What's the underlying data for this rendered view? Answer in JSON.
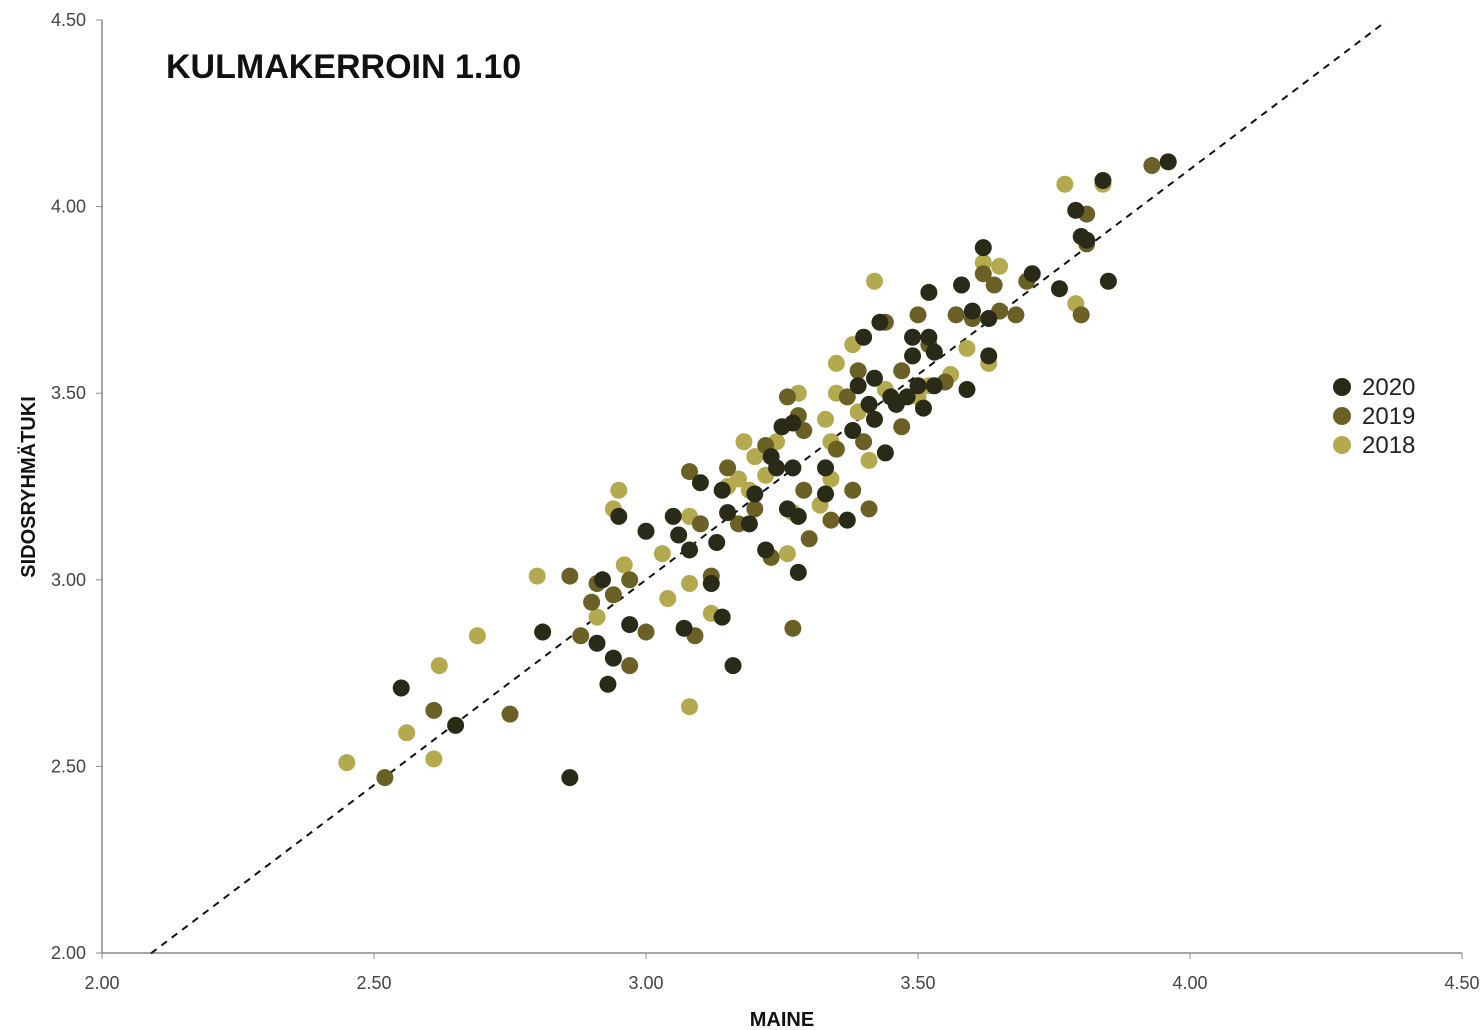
{
  "chart_data": {
    "type": "scatter",
    "title": "KULMAKERROIN 1.10",
    "xlabel": "MAINE",
    "ylabel": "SIDOSRYHMÄTUKI",
    "xlim": [
      2.0,
      4.5
    ],
    "ylim": [
      2.0,
      4.5
    ],
    "xticks": [
      "2.00",
      "2.50",
      "3.00",
      "3.50",
      "4.00",
      "4.50"
    ],
    "yticks": [
      "2.00",
      "2.50",
      "3.00",
      "3.50",
      "4.00",
      "4.50"
    ],
    "grid": false,
    "legend_position": "right",
    "trendline": {
      "style": "dashed",
      "color": "#111111",
      "slope": 1.1,
      "intercept": -0.3,
      "x": [
        2.09,
        4.36
      ]
    },
    "series": [
      {
        "name": "2018",
        "color": "#b3a94e",
        "points": [
          [
            2.45,
            2.51
          ],
          [
            2.56,
            2.59
          ],
          [
            2.61,
            2.52
          ],
          [
            2.62,
            2.77
          ],
          [
            2.69,
            2.85
          ],
          [
            2.8,
            3.01
          ],
          [
            2.91,
            2.9
          ],
          [
            2.94,
            3.19
          ],
          [
            2.95,
            3.24
          ],
          [
            2.96,
            3.04
          ],
          [
            3.03,
            3.07
          ],
          [
            3.04,
            2.95
          ],
          [
            3.08,
            2.66
          ],
          [
            3.08,
            2.99
          ],
          [
            3.08,
            3.17
          ],
          [
            3.12,
            2.91
          ],
          [
            3.15,
            3.25
          ],
          [
            3.17,
            3.27
          ],
          [
            3.18,
            3.37
          ],
          [
            3.19,
            3.24
          ],
          [
            3.2,
            3.33
          ],
          [
            3.22,
            3.28
          ],
          [
            3.24,
            3.37
          ],
          [
            3.26,
            3.07
          ],
          [
            3.27,
            3.18
          ],
          [
            3.28,
            3.5
          ],
          [
            3.32,
            3.2
          ],
          [
            3.33,
            3.43
          ],
          [
            3.34,
            3.37
          ],
          [
            3.34,
            3.27
          ],
          [
            3.35,
            3.5
          ],
          [
            3.35,
            3.58
          ],
          [
            3.38,
            3.63
          ],
          [
            3.39,
            3.45
          ],
          [
            3.41,
            3.32
          ],
          [
            3.42,
            3.8
          ],
          [
            3.44,
            3.51
          ],
          [
            3.5,
            3.49
          ],
          [
            3.52,
            3.52
          ],
          [
            3.56,
            3.55
          ],
          [
            3.59,
            3.62
          ],
          [
            3.62,
            3.85
          ],
          [
            3.63,
            3.58
          ],
          [
            3.65,
            3.84
          ],
          [
            3.77,
            4.06
          ],
          [
            3.79,
            3.74
          ],
          [
            3.84,
            4.06
          ]
        ]
      },
      {
        "name": "2019",
        "color": "#6b6127",
        "points": [
          [
            2.52,
            2.47
          ],
          [
            2.61,
            2.65
          ],
          [
            2.75,
            2.64
          ],
          [
            2.86,
            3.01
          ],
          [
            2.88,
            2.85
          ],
          [
            2.9,
            2.94
          ],
          [
            2.91,
            2.99
          ],
          [
            2.94,
            2.96
          ],
          [
            2.97,
            2.77
          ],
          [
            2.97,
            3.0
          ],
          [
            3.0,
            2.86
          ],
          [
            3.08,
            3.29
          ],
          [
            3.09,
            2.85
          ],
          [
            3.1,
            3.15
          ],
          [
            3.12,
            3.01
          ],
          [
            3.15,
            3.3
          ],
          [
            3.17,
            3.15
          ],
          [
            3.2,
            3.19
          ],
          [
            3.22,
            3.36
          ],
          [
            3.23,
            3.06
          ],
          [
            3.26,
            3.49
          ],
          [
            3.27,
            2.87
          ],
          [
            3.28,
            3.44
          ],
          [
            3.29,
            3.24
          ],
          [
            3.29,
            3.4
          ],
          [
            3.3,
            3.11
          ],
          [
            3.34,
            3.16
          ],
          [
            3.35,
            3.35
          ],
          [
            3.37,
            3.49
          ],
          [
            3.38,
            3.24
          ],
          [
            3.39,
            3.56
          ],
          [
            3.4,
            3.37
          ],
          [
            3.41,
            3.19
          ],
          [
            3.44,
            3.69
          ],
          [
            3.47,
            3.41
          ],
          [
            3.47,
            3.56
          ],
          [
            3.5,
            3.71
          ],
          [
            3.52,
            3.63
          ],
          [
            3.55,
            3.53
          ],
          [
            3.57,
            3.71
          ],
          [
            3.6,
            3.7
          ],
          [
            3.62,
            3.82
          ],
          [
            3.64,
            3.79
          ],
          [
            3.65,
            3.72
          ],
          [
            3.68,
            3.71
          ],
          [
            3.7,
            3.8
          ],
          [
            3.8,
            3.71
          ],
          [
            3.81,
            3.9
          ],
          [
            3.81,
            3.98
          ],
          [
            3.93,
            4.11
          ]
        ]
      },
      {
        "name": "2020",
        "color": "#2a2a18",
        "points": [
          [
            2.55,
            2.71
          ],
          [
            2.65,
            2.61
          ],
          [
            2.81,
            2.86
          ],
          [
            2.86,
            2.47
          ],
          [
            2.91,
            2.83
          ],
          [
            2.92,
            3.0
          ],
          [
            2.93,
            2.72
          ],
          [
            2.94,
            2.79
          ],
          [
            2.95,
            3.17
          ],
          [
            2.97,
            2.88
          ],
          [
            3.0,
            3.13
          ],
          [
            3.05,
            3.17
          ],
          [
            3.06,
            3.12
          ],
          [
            3.07,
            2.87
          ],
          [
            3.08,
            3.08
          ],
          [
            3.1,
            3.26
          ],
          [
            3.12,
            2.99
          ],
          [
            3.13,
            3.1
          ],
          [
            3.14,
            3.24
          ],
          [
            3.14,
            2.9
          ],
          [
            3.15,
            3.18
          ],
          [
            3.16,
            2.77
          ],
          [
            3.19,
            3.15
          ],
          [
            3.2,
            3.23
          ],
          [
            3.22,
            3.08
          ],
          [
            3.23,
            3.33
          ],
          [
            3.24,
            3.3
          ],
          [
            3.25,
            3.41
          ],
          [
            3.26,
            3.19
          ],
          [
            3.27,
            3.3
          ],
          [
            3.27,
            3.42
          ],
          [
            3.28,
            3.02
          ],
          [
            3.28,
            3.17
          ],
          [
            3.33,
            3.23
          ],
          [
            3.33,
            3.3
          ],
          [
            3.37,
            3.16
          ],
          [
            3.38,
            3.4
          ],
          [
            3.39,
            3.52
          ],
          [
            3.4,
            3.65
          ],
          [
            3.41,
            3.47
          ],
          [
            3.42,
            3.43
          ],
          [
            3.42,
            3.54
          ],
          [
            3.43,
            3.69
          ],
          [
            3.44,
            3.34
          ],
          [
            3.45,
            3.49
          ],
          [
            3.46,
            3.47
          ],
          [
            3.48,
            3.49
          ],
          [
            3.49,
            3.6
          ],
          [
            3.49,
            3.65
          ],
          [
            3.5,
            3.52
          ],
          [
            3.51,
            3.46
          ],
          [
            3.52,
            3.77
          ],
          [
            3.52,
            3.65
          ],
          [
            3.53,
            3.52
          ],
          [
            3.53,
            3.61
          ],
          [
            3.58,
            3.79
          ],
          [
            3.59,
            3.51
          ],
          [
            3.6,
            3.72
          ],
          [
            3.62,
            3.89
          ],
          [
            3.63,
            3.7
          ],
          [
            3.63,
            3.6
          ],
          [
            3.71,
            3.82
          ],
          [
            3.76,
            3.78
          ],
          [
            3.79,
            3.99
          ],
          [
            3.8,
            3.92
          ],
          [
            3.81,
            3.91
          ],
          [
            3.84,
            4.07
          ],
          [
            3.85,
            3.8
          ],
          [
            3.96,
            4.12
          ]
        ]
      }
    ],
    "legend": [
      {
        "label": "2020",
        "color": "#2a2a18"
      },
      {
        "label": "2019",
        "color": "#6b6127"
      },
      {
        "label": "2018",
        "color": "#b3a94e"
      }
    ]
  }
}
